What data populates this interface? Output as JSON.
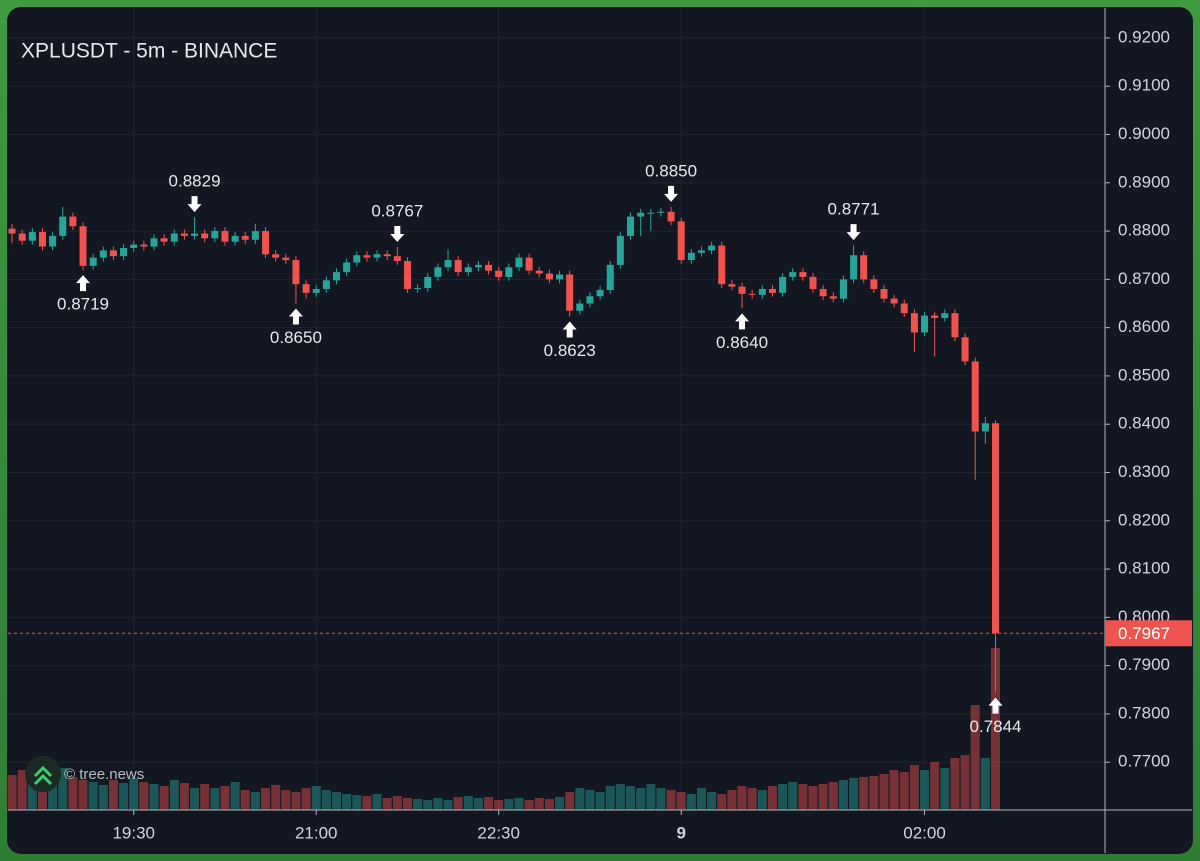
{
  "chart_data": {
    "type": "candlestick",
    "title": "XPLUSDT - 5m - BINANCE",
    "watermark": "© tree.news",
    "up_color": "#26a69a",
    "down_color": "#ef5350",
    "grid": true,
    "x": [
      1110,
      1115,
      1120,
      1125,
      1130,
      1135,
      1140,
      1145,
      1150,
      1155,
      1160,
      1165,
      1170,
      1175,
      1180,
      1185,
      1190,
      1195,
      1200,
      1205,
      1210,
      1215,
      1220,
      1225,
      1230,
      1235,
      1240,
      1245,
      1250,
      1255,
      1260,
      1265,
      1270,
      1275,
      1280,
      1285,
      1290,
      1295,
      1300,
      1305,
      1310,
      1315,
      1320,
      1325,
      1330,
      1335,
      1340,
      1345,
      1350,
      1355,
      1360,
      1365,
      1370,
      1375,
      1380,
      1385,
      1390,
      1395,
      1400,
      1405,
      1410,
      1415,
      1420,
      1425,
      1430,
      1435,
      1440,
      1445,
      1450,
      1455,
      1460,
      1465,
      1470,
      1475,
      1480,
      1485,
      1490,
      1495,
      1500,
      1505,
      1510,
      1515,
      1520,
      1525,
      1530,
      1535,
      1540,
      1545,
      1550,
      1555,
      1560,
      1565,
      1570,
      1575,
      1580,
      1585,
      1590,
      1595
    ],
    "open": [
      0.8805,
      0.8795,
      0.878,
      0.8798,
      0.8768,
      0.879,
      0.883,
      0.881,
      0.8728,
      0.8745,
      0.876,
      0.8748,
      0.8765,
      0.8772,
      0.8768,
      0.8785,
      0.8778,
      0.8795,
      0.879,
      0.8795,
      0.8785,
      0.88,
      0.8778,
      0.879,
      0.8782,
      0.88,
      0.8752,
      0.8745,
      0.874,
      0.869,
      0.8672,
      0.868,
      0.8698,
      0.8715,
      0.8735,
      0.875,
      0.8745,
      0.8752,
      0.8748,
      0.8738,
      0.868,
      0.8682,
      0.8705,
      0.8725,
      0.874,
      0.8715,
      0.8725,
      0.873,
      0.8718,
      0.8705,
      0.8725,
      0.8745,
      0.8718,
      0.8712,
      0.87,
      0.871,
      0.8635,
      0.865,
      0.8665,
      0.8678,
      0.873,
      0.879,
      0.883,
      0.8838,
      0.8838,
      0.884,
      0.882,
      0.874,
      0.8755,
      0.876,
      0.877,
      0.869,
      0.8685,
      0.867,
      0.8668,
      0.868,
      0.8672,
      0.8705,
      0.8715,
      0.8705,
      0.868,
      0.8665,
      0.866,
      0.87,
      0.875,
      0.87,
      0.868,
      0.866,
      0.865,
      0.863,
      0.859,
      0.8625,
      0.862,
      0.863,
      0.858,
      0.853,
      0.8385,
      0.8402
    ],
    "high": [
      0.8815,
      0.8803,
      0.8806,
      0.8806,
      0.8798,
      0.885,
      0.8838,
      0.8818,
      0.8753,
      0.8768,
      0.8768,
      0.8773,
      0.878,
      0.878,
      0.8793,
      0.8793,
      0.8803,
      0.8803,
      0.8829,
      0.8803,
      0.8808,
      0.8808,
      0.8798,
      0.8798,
      0.8815,
      0.8808,
      0.876,
      0.8753,
      0.8748,
      0.8698,
      0.8688,
      0.8706,
      0.8723,
      0.8743,
      0.8758,
      0.8758,
      0.876,
      0.876,
      0.8767,
      0.8746,
      0.869,
      0.8713,
      0.8733,
      0.8762,
      0.8748,
      0.8733,
      0.8738,
      0.8738,
      0.8726,
      0.8733,
      0.8753,
      0.8753,
      0.8726,
      0.872,
      0.8718,
      0.8718,
      0.8658,
      0.8673,
      0.8686,
      0.8738,
      0.8798,
      0.8838,
      0.8846,
      0.8846,
      0.8848,
      0.885,
      0.8828,
      0.8763,
      0.8768,
      0.8778,
      0.8778,
      0.8698,
      0.8693,
      0.8678,
      0.8688,
      0.8688,
      0.8713,
      0.8723,
      0.8723,
      0.8713,
      0.8688,
      0.8673,
      0.8708,
      0.8771,
      0.8758,
      0.8708,
      0.8688,
      0.8668,
      0.8658,
      0.8638,
      0.8633,
      0.8633,
      0.8638,
      0.8638,
      0.8588,
      0.8538,
      0.8415,
      0.8408
    ],
    "low": [
      0.8775,
      0.8772,
      0.8772,
      0.876,
      0.876,
      0.8782,
      0.8802,
      0.8719,
      0.872,
      0.8737,
      0.874,
      0.874,
      0.8757,
      0.876,
      0.876,
      0.877,
      0.877,
      0.8782,
      0.8782,
      0.8777,
      0.8777,
      0.877,
      0.877,
      0.8774,
      0.8774,
      0.8744,
      0.8737,
      0.8732,
      0.865,
      0.866,
      0.8664,
      0.8672,
      0.869,
      0.8707,
      0.8727,
      0.8737,
      0.8737,
      0.874,
      0.873,
      0.8672,
      0.8672,
      0.8674,
      0.8697,
      0.8717,
      0.8707,
      0.8707,
      0.8717,
      0.871,
      0.8697,
      0.8697,
      0.8717,
      0.871,
      0.8704,
      0.8692,
      0.8692,
      0.8623,
      0.8627,
      0.8642,
      0.8657,
      0.867,
      0.8722,
      0.8782,
      0.879,
      0.88,
      0.883,
      0.8812,
      0.8732,
      0.8732,
      0.8747,
      0.8752,
      0.8682,
      0.8677,
      0.864,
      0.866,
      0.866,
      0.8664,
      0.8664,
      0.8697,
      0.8697,
      0.8672,
      0.8657,
      0.8652,
      0.8652,
      0.8692,
      0.8692,
      0.8672,
      0.8652,
      0.8642,
      0.8622,
      0.855,
      0.8582,
      0.854,
      0.8612,
      0.8572,
      0.8522,
      0.8285,
      0.836,
      0.7844
    ],
    "close": [
      0.8795,
      0.878,
      0.8798,
      0.8768,
      0.879,
      0.883,
      0.881,
      0.8728,
      0.8745,
      0.876,
      0.8748,
      0.8765,
      0.8772,
      0.8768,
      0.8785,
      0.8778,
      0.8795,
      0.879,
      0.8795,
      0.8785,
      0.88,
      0.8778,
      0.879,
      0.8782,
      0.88,
      0.8752,
      0.8745,
      0.874,
      0.869,
      0.8672,
      0.868,
      0.8698,
      0.8715,
      0.8735,
      0.875,
      0.8745,
      0.8752,
      0.8748,
      0.8738,
      0.868,
      0.8682,
      0.8705,
      0.8725,
      0.874,
      0.8715,
      0.8725,
      0.873,
      0.8718,
      0.8705,
      0.8725,
      0.8745,
      0.8718,
      0.8712,
      0.87,
      0.871,
      0.8635,
      0.865,
      0.8665,
      0.8678,
      0.873,
      0.879,
      0.883,
      0.8838,
      0.8838,
      0.884,
      0.882,
      0.874,
      0.8755,
      0.876,
      0.877,
      0.869,
      0.8685,
      0.867,
      0.8668,
      0.868,
      0.8672,
      0.8705,
      0.8715,
      0.8705,
      0.868,
      0.8665,
      0.866,
      0.87,
      0.875,
      0.87,
      0.868,
      0.866,
      0.865,
      0.863,
      0.859,
      0.8625,
      0.862,
      0.863,
      0.858,
      0.853,
      0.8385,
      0.8402,
      0.7967
    ],
    "volume": [
      35,
      40,
      30,
      38,
      34,
      42,
      33,
      30,
      28,
      25,
      30,
      27,
      32,
      28,
      26,
      24,
      30,
      27,
      22,
      26,
      22,
      24,
      28,
      20,
      18,
      22,
      25,
      20,
      18,
      22,
      24,
      20,
      18,
      16,
      15,
      14,
      16,
      12,
      14,
      12,
      11,
      10,
      12,
      10,
      13,
      14,
      12,
      13,
      10,
      11,
      12,
      10,
      12,
      11,
      13,
      18,
      22,
      20,
      18,
      24,
      26,
      24,
      22,
      26,
      22,
      20,
      18,
      16,
      22,
      18,
      16,
      20,
      24,
      22,
      20,
      24,
      26,
      28,
      26,
      24,
      26,
      28,
      30,
      32,
      33,
      34,
      36,
      40,
      38,
      45,
      40,
      48,
      42,
      52,
      55,
      105,
      52,
      162
    ],
    "vlim": [
      0,
      250
    ],
    "xlim": [
      1108,
      1649
    ],
    "xticks": [
      {
        "value": 1170,
        "label": "19:30"
      },
      {
        "value": 1260,
        "label": "21:00"
      },
      {
        "value": 1350,
        "label": "22:30"
      },
      {
        "value": 1440,
        "label": "9",
        "bold": true
      },
      {
        "value": 1560,
        "label": "02:00"
      }
    ],
    "ylim": [
      0.7601,
      0.9262
    ],
    "yticks": [
      {
        "value": 0.92,
        "label": "0.9200"
      },
      {
        "value": 0.91,
        "label": "0.9100"
      },
      {
        "value": 0.9,
        "label": "0.9000"
      },
      {
        "value": 0.89,
        "label": "0.8900"
      },
      {
        "value": 0.88,
        "label": "0.8800"
      },
      {
        "value": 0.87,
        "label": "0.8700"
      },
      {
        "value": 0.86,
        "label": "0.8600"
      },
      {
        "value": 0.85,
        "label": "0.8500"
      },
      {
        "value": 0.84,
        "label": "0.8400"
      },
      {
        "value": 0.83,
        "label": "0.8300"
      },
      {
        "value": 0.82,
        "label": "0.8200"
      },
      {
        "value": 0.81,
        "label": "0.8100"
      },
      {
        "value": 0.8,
        "label": "0.8000"
      },
      {
        "value": 0.79,
        "label": "0.7900"
      },
      {
        "value": 0.78,
        "label": "0.7800"
      },
      {
        "value": 0.77,
        "label": "0.7700"
      }
    ],
    "annotations": [
      {
        "x": 1145,
        "value": 0.8719,
        "label": "0.8719",
        "position": "below"
      },
      {
        "x": 1200,
        "value": 0.8829,
        "label": "0.8829",
        "position": "above"
      },
      {
        "x": 1250,
        "value": 0.865,
        "label": "0.8650",
        "position": "below"
      },
      {
        "x": 1300,
        "value": 0.8767,
        "label": "0.8767",
        "position": "above"
      },
      {
        "x": 1385,
        "value": 0.8623,
        "label": "0.8623",
        "position": "below"
      },
      {
        "x": 1435,
        "value": 0.885,
        "label": "0.8850",
        "position": "above"
      },
      {
        "x": 1470,
        "value": 0.864,
        "label": "0.8640",
        "position": "below"
      },
      {
        "x": 1525,
        "value": 0.8771,
        "label": "0.8771",
        "position": "above"
      },
      {
        "x": 1595,
        "value": 0.7844,
        "label": "0.7844",
        "position": "below"
      }
    ]
  }
}
